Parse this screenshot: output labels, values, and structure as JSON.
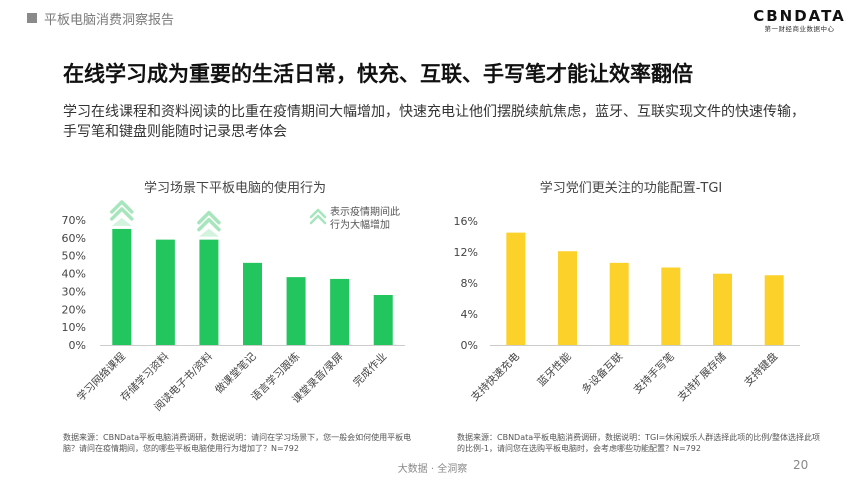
{
  "header": {
    "report_title": "平板电脑消费洞察报告"
  },
  "logo": {
    "main": "CBNDATA",
    "sub": "第一财经商业数据中心"
  },
  "page": {
    "title": "在线学习成为重要的生活日常，快充、互联、手写笔才能让效率翻倍",
    "subtitle": "学习在线课程和资料阅读的比重在疫情期间大幅增加，快速充电让他们摆脱续航焦虑，蓝牙、互联实现文件的快速传输，手写笔和键盘则能随时记录思考体会"
  },
  "chart_data": [
    {
      "type": "bar",
      "title": "学习场景下平板电脑的使用行为",
      "categories": [
        "学习网络课程",
        "存储学习资料",
        "阅读电子书/资料",
        "做课堂笔记",
        "语言学习跟练",
        "课堂录音/录屏",
        "完成作业"
      ],
      "values": [
        65,
        59,
        59,
        46,
        38,
        37,
        28
      ],
      "ylim": [
        0,
        70
      ],
      "yticks": [
        "0%",
        "10%",
        "20%",
        "30%",
        "40%",
        "50%",
        "60%",
        "70%"
      ],
      "bar_color": "#22c55e",
      "highlighted": [
        "学习网络课程",
        "阅读电子书/资料"
      ],
      "annotation": {
        "line1": "表示疫情期间此",
        "line2": "行为大幅增加"
      },
      "grid": false
    },
    {
      "type": "bar",
      "title": "学习党们更关注的功能配置-TGI",
      "categories": [
        "支持快速充电",
        "蓝牙性能",
        "多设备互联",
        "支持手写笔",
        "支持扩展存储",
        "支持键盘"
      ],
      "values": [
        14.5,
        12.1,
        10.6,
        10.0,
        9.2,
        9.0
      ],
      "ylim": [
        0,
        16
      ],
      "yticks": [
        "0%",
        "4%",
        "8%",
        "12%",
        "16%"
      ],
      "bar_color": "#fcd12a",
      "grid": false
    }
  ],
  "footnotes": {
    "left": "数据来源：CBNData平板电脑消费调研，数据说明：请问在学习场景下，您一般会如何使用平板电脑？请问在疫情期间，您的哪些平板电脑使用行为增加了？N=792",
    "right": "数据来源：CBNData平板电脑消费调研，数据说明：TGI=休闲娱乐人群选择此项的比例/整体选择此项的比例-1，请问您在选购平板电脑时，会考虑哪些功能配置？N=792"
  },
  "footer": {
    "center": "大数据 · 全洞察",
    "page_number": "20"
  },
  "colors": {
    "accent_green": "#22c55e",
    "accent_yellow": "#fcd12a",
    "arrow_green": "#a7e6bd"
  }
}
